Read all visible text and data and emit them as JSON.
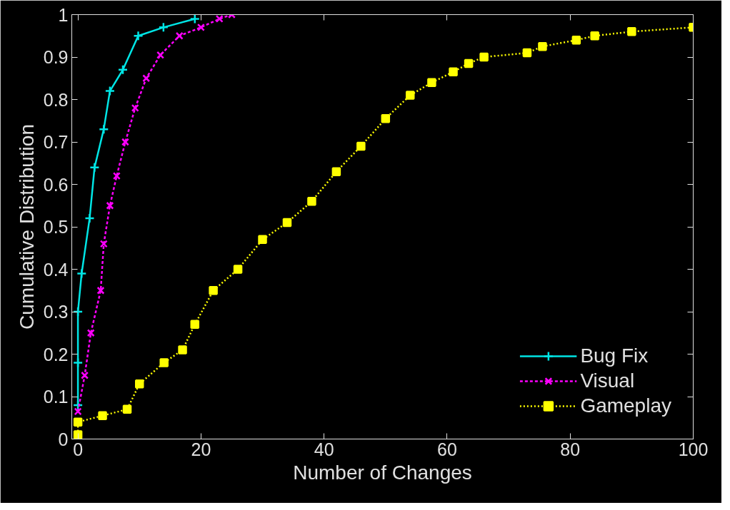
{
  "chart_data": {
    "type": "line",
    "xlabel": "Number of Changes",
    "ylabel": "Cumulative Distribution",
    "xlim": [
      -1,
      100
    ],
    "ylim": [
      0,
      1
    ],
    "xticks": [
      0,
      20,
      40,
      60,
      80,
      100
    ],
    "yticks": [
      0,
      0.1,
      0.2,
      0.3,
      0.4,
      0.5,
      0.6,
      0.7,
      0.8,
      0.9,
      1
    ],
    "legend": "bottom right",
    "grid": false,
    "series": [
      {
        "name": "Bug Fix",
        "color": "#00e5e5",
        "marker": "cross",
        "line_style": "solid",
        "x": [
          0,
          0,
          0,
          0.6,
          1.9,
          2.7,
          4.2,
          5.2,
          7.3,
          9.8,
          13.9,
          19
        ],
        "values": [
          0.08,
          0.18,
          0.3,
          0.39,
          0.52,
          0.64,
          0.73,
          0.82,
          0.87,
          0.95,
          0.97,
          0.99
        ]
      },
      {
        "name": "Visual",
        "color": "#ff00ff",
        "marker": "x",
        "line_style": "dashed",
        "x": [
          0,
          1.1,
          2.1,
          3.7,
          4.2,
          5.2,
          6.3,
          7.7,
          9.3,
          11.1,
          13.4,
          16.5,
          20,
          23,
          25
        ],
        "values": [
          0.065,
          0.15,
          0.25,
          0.35,
          0.46,
          0.55,
          0.62,
          0.7,
          0.78,
          0.85,
          0.905,
          0.95,
          0.97,
          0.99,
          1
        ]
      },
      {
        "name": "Gameplay",
        "color": "#ffff00",
        "marker": "square",
        "line_style": "dotted",
        "x": [
          0,
          0,
          4,
          8,
          10,
          14,
          17,
          19,
          22,
          26,
          30,
          34,
          38,
          42,
          46,
          50,
          54,
          57.5,
          61,
          63.5,
          66,
          73,
          75.5,
          81,
          84,
          90,
          100
        ],
        "values": [
          0.01,
          0.04,
          0.055,
          0.07,
          0.13,
          0.18,
          0.21,
          0.27,
          0.35,
          0.4,
          0.47,
          0.51,
          0.56,
          0.63,
          0.69,
          0.755,
          0.81,
          0.84,
          0.865,
          0.885,
          0.9,
          0.91,
          0.925,
          0.94,
          0.95,
          0.96,
          0.97
        ]
      }
    ]
  }
}
